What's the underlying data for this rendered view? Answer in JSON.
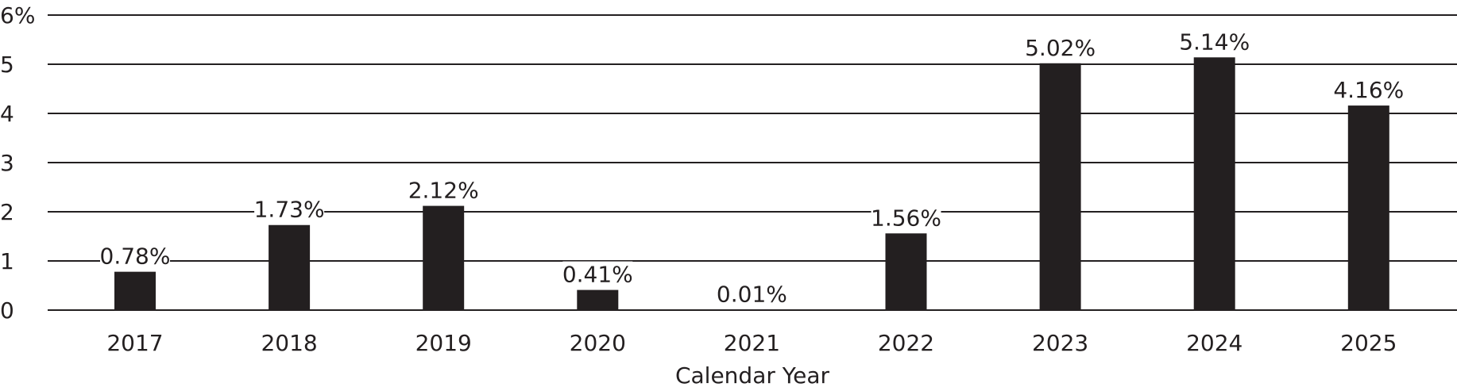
{
  "chart_data": {
    "type": "bar",
    "categories": [
      "2017",
      "2018",
      "2019",
      "2020",
      "2021",
      "2022",
      "2023",
      "2024",
      "2025"
    ],
    "values": [
      0.78,
      1.73,
      2.12,
      0.41,
      0.01,
      1.56,
      5.02,
      5.14,
      4.16
    ],
    "value_labels": [
      "0.78%",
      "1.73%",
      "2.12%",
      "0.41%",
      "0.01%",
      "1.56%",
      "5.02%",
      "5.14%",
      "4.16%"
    ],
    "y_ticks": [
      0,
      1,
      2,
      3,
      4,
      5,
      6
    ],
    "y_tick_labels": [
      "0",
      "1",
      "2",
      "3",
      "4",
      "5",
      "6%"
    ],
    "ylim": [
      0,
      6
    ],
    "title": "",
    "xlabel": "Calendar Year",
    "ylabel": "",
    "grid": true,
    "bar_color": "#231f20"
  }
}
